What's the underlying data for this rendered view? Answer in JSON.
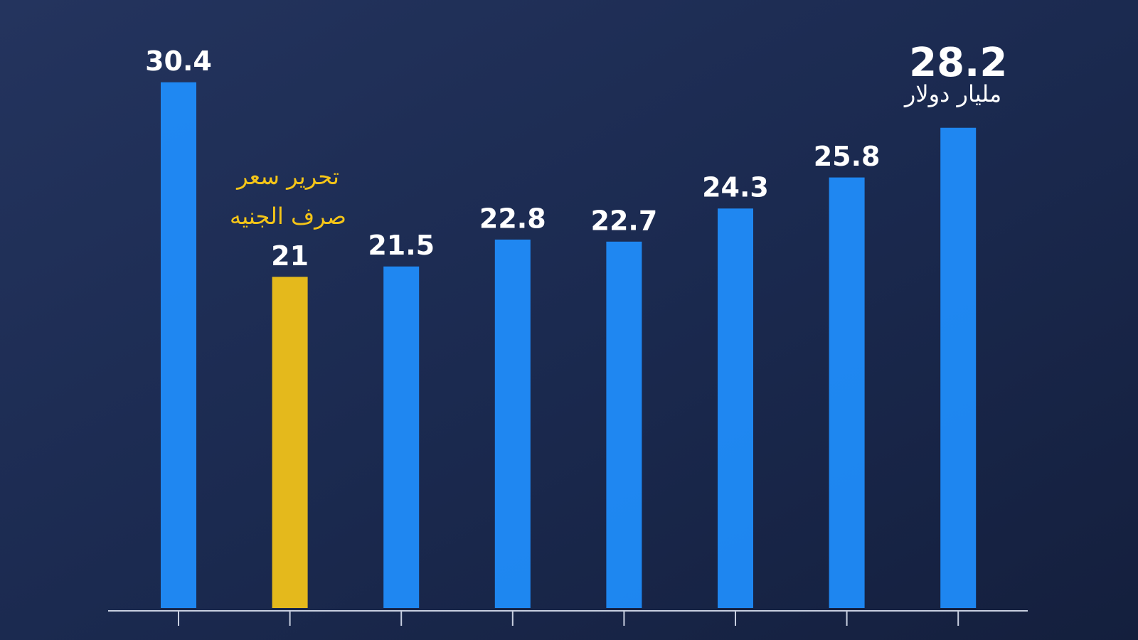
{
  "chart_data": {
    "type": "bar",
    "categories": [
      null,
      null,
      null,
      null,
      null,
      null,
      null,
      null
    ],
    "values": [
      30.4,
      21,
      21.5,
      22.8,
      22.7,
      24.3,
      25.8,
      28.2
    ],
    "colors": [
      "#1f8fff",
      "#f5c518",
      "#1f8fff",
      "#1f8fff",
      "#1f8fff",
      "#1f8fff",
      "#1f8fff",
      "#1f8fff"
    ],
    "ylim": [
      5,
      33
    ],
    "annotation": [
      "تحرير سعر",
      "صرف الجنيه"
    ],
    "unit": "مليار دولار"
  }
}
